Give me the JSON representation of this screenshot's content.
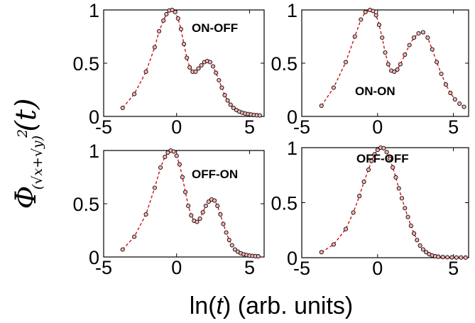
{
  "figure": {
    "xlabel_prefix": "ln(",
    "xlabel_var": "t",
    "xlabel_suffix": ") (arb. units)",
    "ylabel_symbol": "Φ",
    "ylabel_subscript": "(√x+√y)",
    "ylabel_power": "2",
    "ylabel_arg": "(t)",
    "colors": {
      "line": "#cc0000",
      "marker_edge": "#000000",
      "marker_fill": "#ffb3b3"
    }
  },
  "chart_data": [
    {
      "type": "scatter",
      "title": "",
      "annotation": "ON-OFF",
      "xlim": [
        -5,
        6
      ],
      "ylim": [
        0,
        1
      ],
      "xticks": [
        -5,
        0,
        5
      ],
      "yticks": [
        0,
        0.5,
        1
      ],
      "xtick_labels": [
        "-5",
        "0",
        "5"
      ],
      "ytick_labels": [
        "0",
        "0.5",
        "1"
      ],
      "series": [
        {
          "marker": "open-circle",
          "line": "dashed",
          "color": "#cc0000",
          "x": [
            -3.7,
            -2.9,
            -2.1,
            -1.5,
            -1.2,
            -0.9,
            -0.7,
            -0.5,
            -0.3,
            -0.1,
            0.1,
            0.3,
            0.5,
            0.7,
            0.9,
            1.1,
            1.3,
            1.5,
            1.7,
            1.9,
            2.1,
            2.3,
            2.5,
            2.7,
            2.9,
            3.1,
            3.3,
            3.5,
            3.7,
            3.9,
            4.1,
            4.3,
            4.5,
            4.7,
            4.9,
            5.1,
            5.3,
            5.5,
            5.7
          ],
          "y": [
            0.08,
            0.21,
            0.42,
            0.65,
            0.8,
            0.9,
            0.96,
            0.995,
            1.0,
            0.98,
            0.92,
            0.82,
            0.68,
            0.55,
            0.46,
            0.42,
            0.42,
            0.45,
            0.48,
            0.51,
            0.52,
            0.51,
            0.47,
            0.41,
            0.34,
            0.27,
            0.2,
            0.15,
            0.11,
            0.08,
            0.06,
            0.045,
            0.035,
            0.027,
            0.022,
            0.018,
            0.014,
            0.011,
            0.009
          ]
        }
      ]
    },
    {
      "type": "scatter",
      "title": "",
      "annotation": "ON-ON",
      "xlim": [
        -5,
        6
      ],
      "ylim": [
        0,
        1
      ],
      "xticks": [
        -5,
        0,
        5
      ],
      "yticks": [
        0,
        0.5,
        1
      ],
      "xtick_labels": [
        "-5",
        "0",
        "5"
      ],
      "ytick_labels": [
        "0",
        "0.5",
        "1"
      ],
      "series": [
        {
          "marker": "open-circle",
          "line": "dashed",
          "color": "#cc0000",
          "x": [
            -3.7,
            -2.9,
            -2.1,
            -1.5,
            -1.1,
            -0.8,
            -0.5,
            -0.3,
            -0.1,
            0.1,
            0.3,
            0.5,
            0.7,
            0.9,
            1.1,
            1.3,
            1.5,
            1.8,
            2.1,
            2.4,
            2.7,
            3.0,
            3.3,
            3.6,
            3.9,
            4.2,
            4.5,
            4.8,
            5.1,
            5.4,
            5.7
          ],
          "y": [
            0.1,
            0.27,
            0.51,
            0.75,
            0.91,
            0.98,
            1.0,
            0.99,
            0.95,
            0.86,
            0.74,
            0.6,
            0.49,
            0.43,
            0.42,
            0.44,
            0.49,
            0.58,
            0.67,
            0.74,
            0.78,
            0.79,
            0.74,
            0.63,
            0.51,
            0.4,
            0.3,
            0.22,
            0.16,
            0.12,
            0.09
          ]
        }
      ]
    },
    {
      "type": "scatter",
      "title": "",
      "annotation": "OFF-ON",
      "xlim": [
        -5,
        6
      ],
      "ylim": [
        0,
        1
      ],
      "xticks": [
        -5,
        0,
        5
      ],
      "yticks": [
        0,
        0.5,
        1
      ],
      "xtick_labels": [
        "-5",
        "0",
        "5"
      ],
      "ytick_labels": [
        "0",
        "0.5",
        "1"
      ],
      "series": [
        {
          "marker": "open-circle",
          "line": "dashed",
          "color": "#cc0000",
          "x": [
            -3.7,
            -2.9,
            -2.1,
            -1.5,
            -1.1,
            -0.8,
            -0.6,
            -0.4,
            -0.2,
            0.0,
            0.2,
            0.4,
            0.6,
            0.8,
            1.0,
            1.2,
            1.4,
            1.6,
            1.8,
            2.0,
            2.2,
            2.4,
            2.6,
            2.8,
            3.0,
            3.2,
            3.4,
            3.6,
            3.8,
            4.0,
            4.2,
            4.4,
            4.6,
            4.8,
            5.0,
            5.2,
            5.4,
            5.6
          ],
          "y": [
            0.07,
            0.19,
            0.4,
            0.65,
            0.84,
            0.94,
            0.98,
            1.0,
            0.99,
            0.95,
            0.87,
            0.75,
            0.61,
            0.48,
            0.39,
            0.34,
            0.33,
            0.36,
            0.42,
            0.48,
            0.52,
            0.54,
            0.53,
            0.48,
            0.4,
            0.31,
            0.23,
            0.16,
            0.11,
            0.07,
            0.05,
            0.035,
            0.025,
            0.018,
            0.013,
            0.01,
            0.008,
            0.006
          ]
        }
      ]
    },
    {
      "type": "scatter",
      "title": "",
      "annotation": "OFF-OFF",
      "xlim": [
        -5,
        6
      ],
      "ylim": [
        0,
        1
      ],
      "xticks": [
        -5,
        0,
        5
      ],
      "yticks": [
        0,
        0.5,
        1
      ],
      "xtick_labels": [
        "-5",
        "0",
        "5"
      ],
      "ytick_labels": [
        "0",
        "0.5",
        "1"
      ],
      "series": [
        {
          "marker": "open-circle",
          "line": "dashed",
          "color": "#cc0000",
          "x": [
            -3.7,
            -2.9,
            -2.1,
            -1.6,
            -1.2,
            -0.9,
            -0.6,
            -0.4,
            -0.2,
            0.0,
            0.2,
            0.4,
            0.6,
            0.8,
            1.0,
            1.2,
            1.4,
            1.6,
            1.8,
            2.0,
            2.2,
            2.4,
            2.6,
            2.8,
            3.0,
            3.2,
            3.4,
            3.6,
            3.8,
            4.0,
            4.3,
            4.6,
            4.9,
            5.2,
            5.5,
            5.8
          ],
          "y": [
            0.05,
            0.12,
            0.26,
            0.41,
            0.56,
            0.69,
            0.8,
            0.88,
            0.94,
            0.98,
            1.0,
            0.995,
            0.96,
            0.9,
            0.82,
            0.73,
            0.63,
            0.54,
            0.45,
            0.37,
            0.29,
            0.22,
            0.16,
            0.11,
            0.075,
            0.05,
            0.032,
            0.02,
            0.013,
            0.009,
            0.006,
            0.004,
            0.003,
            0.002,
            0.002,
            0.001
          ]
        }
      ]
    }
  ]
}
